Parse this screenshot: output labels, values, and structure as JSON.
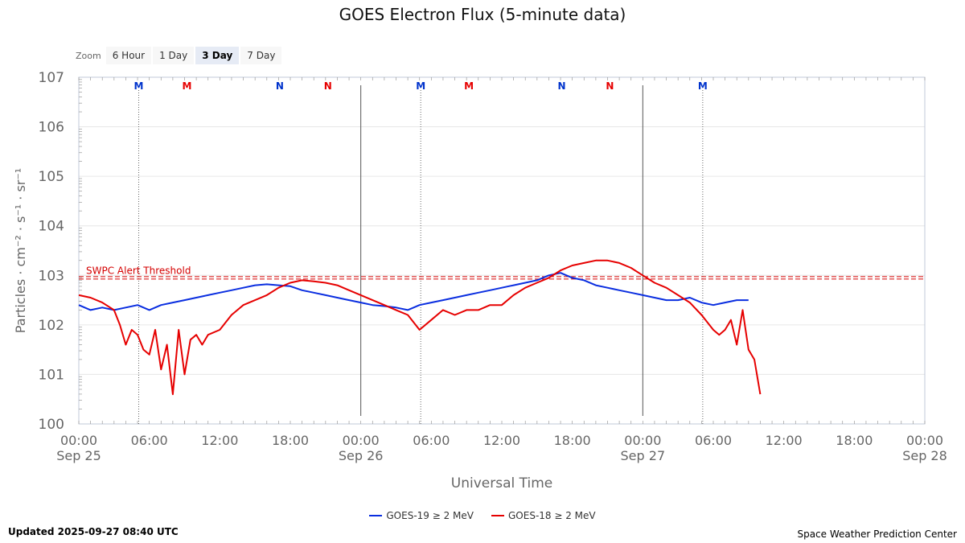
{
  "chart_data": {
    "type": "line",
    "title": "GOES Electron Flux (5-minute data)",
    "xlabel": "Universal Time",
    "ylabel": "Particles · cm⁻² · s⁻¹ · sr⁻¹",
    "yscale": "log",
    "ylim": [
      0,
      7
    ],
    "xlim_hours": [
      0,
      72
    ],
    "y_ticks": [
      {
        "base": "10",
        "exp": "0"
      },
      {
        "base": "10",
        "exp": "1"
      },
      {
        "base": "10",
        "exp": "2"
      },
      {
        "base": "10",
        "exp": "3"
      },
      {
        "base": "10",
        "exp": "4"
      },
      {
        "base": "10",
        "exp": "5"
      },
      {
        "base": "10",
        "exp": "6"
      },
      {
        "base": "10",
        "exp": "7"
      }
    ],
    "x_ticks": [
      {
        "time": "00:00",
        "date": "Sep 25"
      },
      {
        "time": "06:00",
        "date": ""
      },
      {
        "time": "12:00",
        "date": ""
      },
      {
        "time": "18:00",
        "date": ""
      },
      {
        "time": "00:00",
        "date": "Sep 26"
      },
      {
        "time": "06:00",
        "date": ""
      },
      {
        "time": "12:00",
        "date": ""
      },
      {
        "time": "18:00",
        "date": ""
      },
      {
        "time": "00:00",
        "date": "Sep 27"
      },
      {
        "time": "06:00",
        "date": ""
      },
      {
        "time": "12:00",
        "date": ""
      },
      {
        "time": "18:00",
        "date": ""
      },
      {
        "time": "00:00",
        "date": "Sep 28"
      }
    ],
    "day_boundaries_hours": [
      24,
      48
    ],
    "threshold": {
      "label": "SWPC Alert Threshold",
      "log_value": 2.95,
      "color": "#d40000"
    },
    "markers": [
      {
        "label": "M",
        "hour": 5.1,
        "color": "#0033cc",
        "dotted": true
      },
      {
        "label": "M",
        "hour": 9.2,
        "color": "#e60000",
        "dotted": false
      },
      {
        "label": "N",
        "hour": 17.1,
        "color": "#0033cc",
        "dotted": false
      },
      {
        "label": "N",
        "hour": 21.2,
        "color": "#e60000",
        "dotted": false
      },
      {
        "label": "M",
        "hour": 29.1,
        "color": "#0033cc",
        "dotted": true
      },
      {
        "label": "M",
        "hour": 33.2,
        "color": "#e60000",
        "dotted": false
      },
      {
        "label": "N",
        "hour": 41.1,
        "color": "#0033cc",
        "dotted": false
      },
      {
        "label": "N",
        "hour": 45.2,
        "color": "#e60000",
        "dotted": false
      },
      {
        "label": "M",
        "hour": 53.1,
        "color": "#0033cc",
        "dotted": true
      }
    ],
    "series": [
      {
        "name": "GOES-19 ≥ 2 MeV",
        "color": "#0a2ee0",
        "hours": [
          0,
          1,
          2,
          3,
          4,
          5,
          6,
          7,
          8,
          9,
          10,
          11,
          12,
          13,
          14,
          15,
          16,
          17,
          18,
          19,
          20,
          21,
          22,
          23,
          24,
          25,
          26,
          27,
          28,
          29,
          30,
          31,
          32,
          33,
          34,
          35,
          36,
          37,
          38,
          39,
          40,
          41,
          42,
          43,
          44,
          45,
          46,
          47,
          48,
          49,
          50,
          51,
          52,
          53,
          54,
          55,
          56,
          57
        ],
        "values": [
          2.4,
          2.3,
          2.35,
          2.3,
          2.35,
          2.4,
          2.3,
          2.4,
          2.45,
          2.5,
          2.55,
          2.6,
          2.65,
          2.7,
          2.75,
          2.8,
          2.82,
          2.8,
          2.78,
          2.7,
          2.65,
          2.6,
          2.55,
          2.5,
          2.45,
          2.4,
          2.38,
          2.35,
          2.3,
          2.4,
          2.45,
          2.5,
          2.55,
          2.6,
          2.65,
          2.7,
          2.75,
          2.8,
          2.85,
          2.9,
          3.0,
          3.05,
          2.95,
          2.9,
          2.8,
          2.75,
          2.7,
          2.65,
          2.6,
          2.55,
          2.5,
          2.5,
          2.55,
          2.45,
          2.4,
          2.45,
          2.5,
          2.5
        ]
      },
      {
        "name": "GOES-18 ≥ 2 MeV",
        "color": "#e60000",
        "hours": [
          0,
          1,
          2,
          3,
          3.5,
          4,
          4.5,
          5,
          5.5,
          6,
          6.5,
          7,
          7.5,
          8,
          8.5,
          9,
          9.5,
          10,
          10.5,
          11,
          12,
          13,
          14,
          15,
          16,
          17,
          18,
          19,
          20,
          21,
          22,
          23,
          24,
          25,
          26,
          27,
          28,
          29,
          30,
          31,
          32,
          33,
          34,
          35,
          36,
          37,
          38,
          39,
          40,
          41,
          42,
          43,
          44,
          45,
          46,
          47,
          48,
          49,
          50,
          51,
          52,
          53,
          54,
          54.5,
          55,
          55.5,
          56,
          56.5,
          57,
          57.5,
          58
        ],
        "values": [
          2.6,
          2.55,
          2.45,
          2.3,
          2.0,
          1.6,
          1.9,
          1.8,
          1.5,
          1.4,
          1.9,
          1.1,
          1.6,
          0.6,
          1.9,
          1.0,
          1.7,
          1.8,
          1.6,
          1.8,
          1.9,
          2.2,
          2.4,
          2.5,
          2.6,
          2.75,
          2.85,
          2.9,
          2.88,
          2.85,
          2.8,
          2.7,
          2.6,
          2.5,
          2.4,
          2.3,
          2.2,
          1.9,
          2.1,
          2.3,
          2.2,
          2.3,
          2.3,
          2.4,
          2.4,
          2.6,
          2.75,
          2.85,
          2.95,
          3.1,
          3.2,
          3.25,
          3.3,
          3.3,
          3.25,
          3.15,
          3.0,
          2.85,
          2.75,
          2.6,
          2.45,
          2.2,
          1.9,
          1.8,
          1.9,
          2.1,
          1.6,
          2.3,
          1.5,
          1.3,
          0.6
        ]
      }
    ]
  },
  "zoom": {
    "label": "Zoom",
    "options": [
      {
        "label": "6 Hour",
        "active": false
      },
      {
        "label": "1 Day",
        "active": false
      },
      {
        "label": "3 Day",
        "active": true
      },
      {
        "label": "7 Day",
        "active": false
      }
    ]
  },
  "footer": {
    "updated": "Updated 2025-09-27 08:40 UTC",
    "credit": "Space Weather Prediction Center"
  }
}
